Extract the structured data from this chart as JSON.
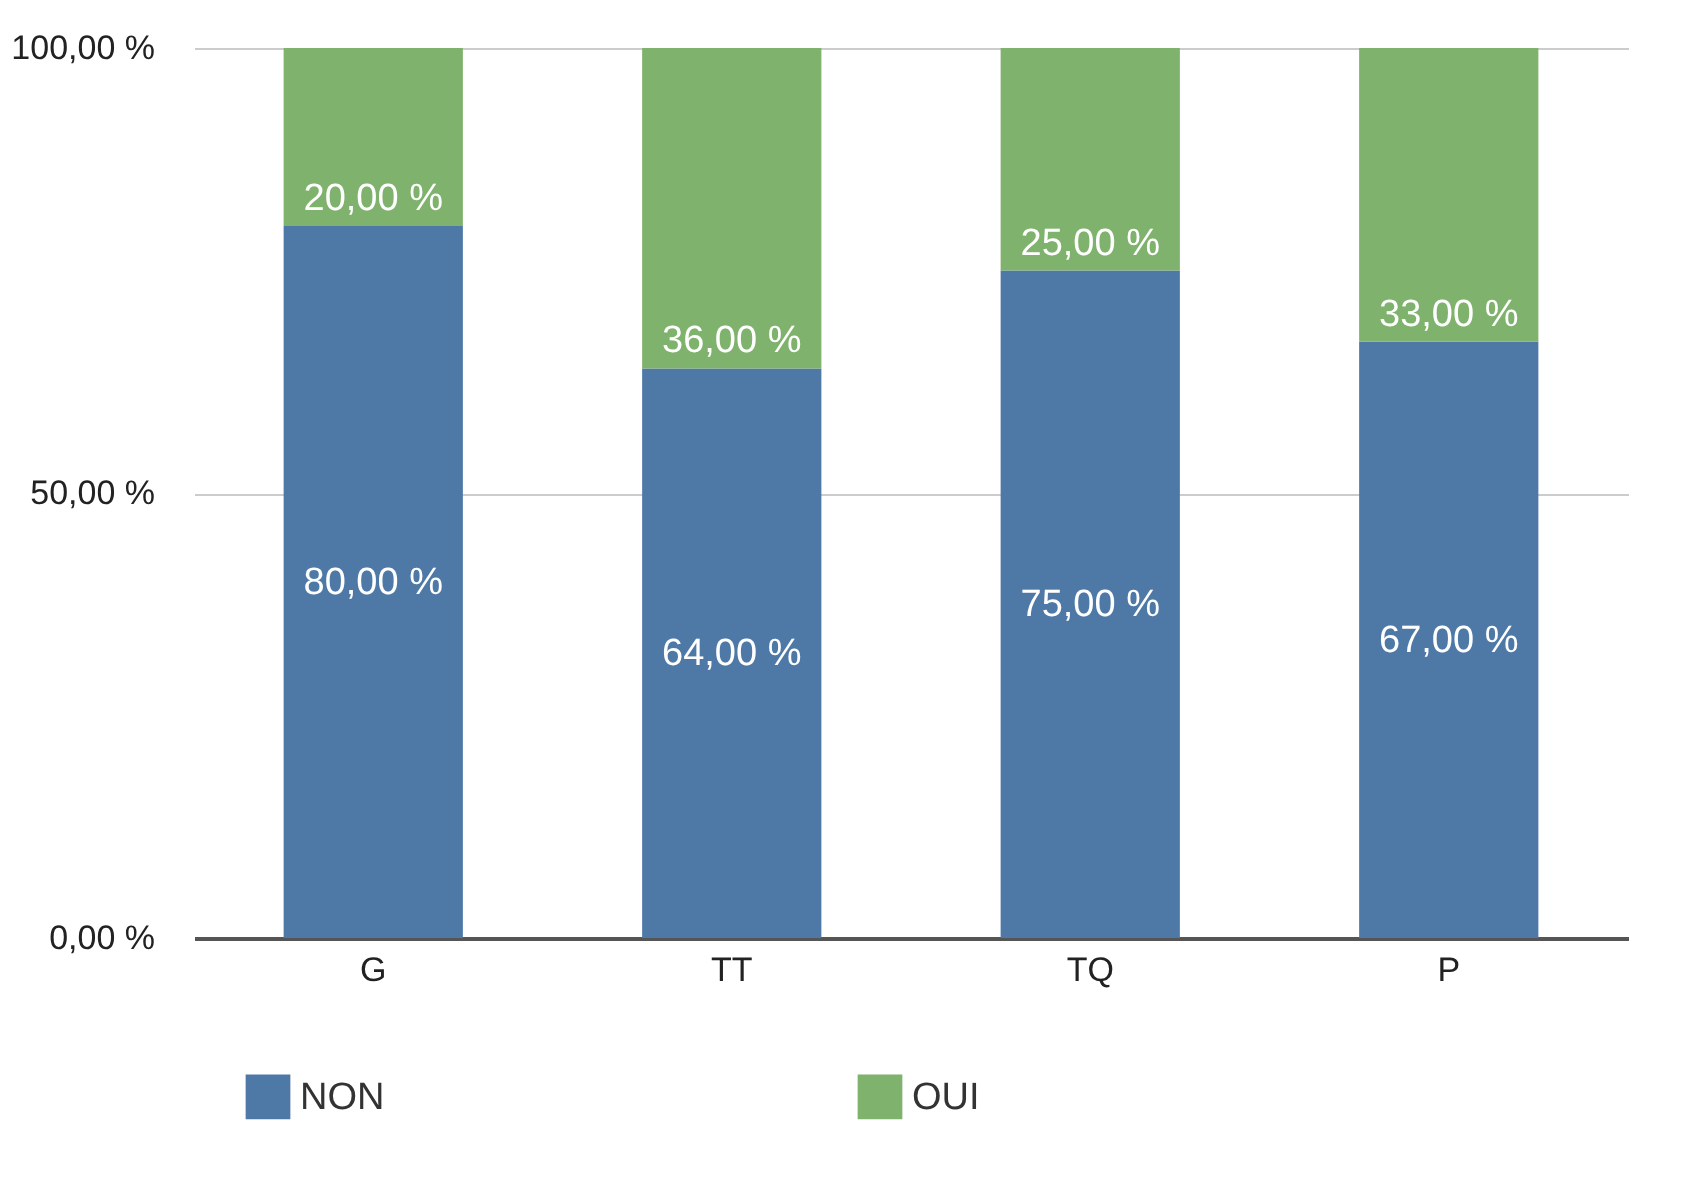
{
  "chart_data": {
    "type": "bar",
    "stacked": true,
    "categories": [
      "G",
      "TT",
      "TQ",
      "P"
    ],
    "series": [
      {
        "name": "NON",
        "color": "#4e79a7",
        "values": [
          80,
          64,
          75,
          67
        ],
        "value_labels": [
          "80,00 %",
          "64,00 %",
          "75,00 %",
          "67,00 %"
        ]
      },
      {
        "name": "OUI",
        "color": "#7fb26c",
        "values": [
          20,
          36,
          25,
          33
        ],
        "value_labels": [
          "20,00 %",
          "36,00 %",
          "25,00 %",
          "33,00 %"
        ]
      }
    ],
    "ylim": [
      0,
      100
    ],
    "yticks": [
      {
        "value": 0,
        "label": "0,00 %"
      },
      {
        "value": 50,
        "label": "50,00 %"
      },
      {
        "value": 100,
        "label": "100,00 %"
      }
    ],
    "grid": "y",
    "legend": "bottom"
  }
}
